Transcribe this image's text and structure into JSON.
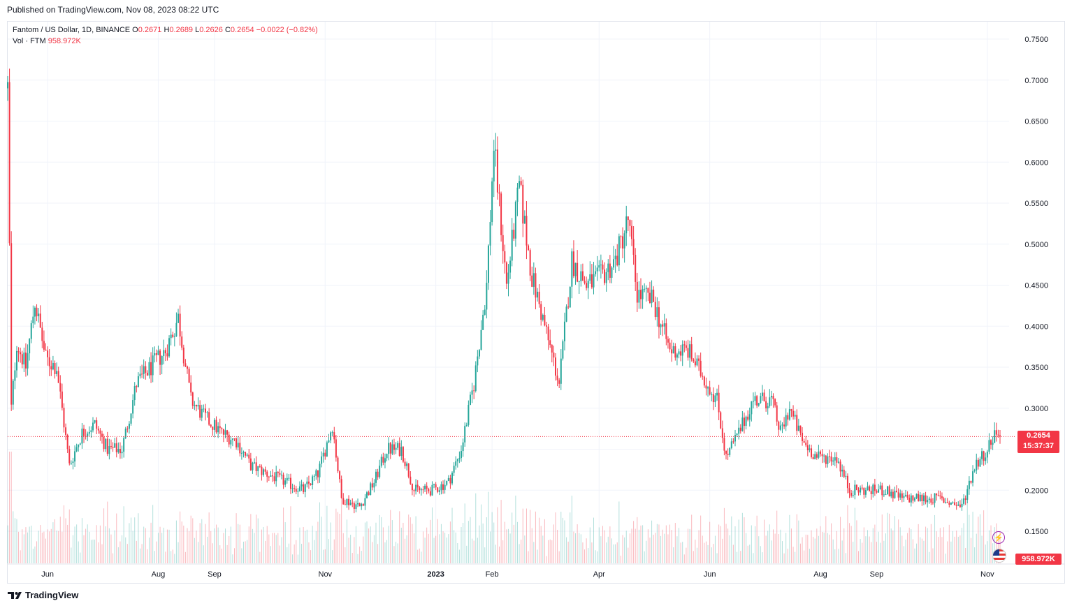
{
  "header": {
    "published": "Published on TradingView.com, Nov 08, 2023 08:22 UTC"
  },
  "legend": {
    "symbol": "Fantom / US Dollar, 1D, BINANCE",
    "o_label": "O",
    "o": "0.2671",
    "h_label": "H",
    "h": "0.2689",
    "l_label": "L",
    "l": "0.2626",
    "c_label": "C",
    "c": "0.2654",
    "change": "−0.0022 (−0.82%)",
    "vol_label": "Vol · FTM",
    "vol": "958.972K"
  },
  "price_tag": {
    "price": "0.2654",
    "countdown": "15:37:37"
  },
  "volume_tag": "958.972K",
  "footer": {
    "brand": "TradingView"
  },
  "colors": {
    "up": "#26a69a",
    "down": "#f23645",
    "grid": "#f0f3fa"
  },
  "chart_data": {
    "type": "candlestick",
    "y_axis_ticks": [
      "0.7500",
      "0.7000",
      "0.6500",
      "0.6000",
      "0.5500",
      "0.5000",
      "0.4500",
      "0.4000",
      "0.3500",
      "0.3000",
      "0.2500",
      "0.2000",
      "0.1500"
    ],
    "ylim": [
      0.135,
      0.76
    ],
    "x_axis_ticks": [
      "Jun",
      "Aug",
      "Sep",
      "Nov",
      "2023",
      "Feb",
      "Apr",
      "Jun",
      "Aug",
      "Sep",
      "Nov"
    ],
    "last_price": 0.2654,
    "series_close": [
      [
        "2022-05-10",
        0.69
      ],
      [
        "2022-05-12",
        0.3
      ],
      [
        "2022-05-15",
        0.38
      ],
      [
        "2022-05-20",
        0.35
      ],
      [
        "2022-05-25",
        0.43
      ],
      [
        "2022-05-31",
        0.36
      ],
      [
        "2022-06-06",
        0.35
      ],
      [
        "2022-06-13",
        0.23
      ],
      [
        "2022-06-20",
        0.27
      ],
      [
        "2022-06-27",
        0.28
      ],
      [
        "2022-07-04",
        0.25
      ],
      [
        "2022-07-12",
        0.25
      ],
      [
        "2022-07-20",
        0.33
      ],
      [
        "2022-07-28",
        0.35
      ],
      [
        "2022-08-05",
        0.37
      ],
      [
        "2022-08-12",
        0.41
      ],
      [
        "2022-08-19",
        0.31
      ],
      [
        "2022-08-26",
        0.29
      ],
      [
        "2022-09-05",
        0.27
      ],
      [
        "2022-09-13",
        0.26
      ],
      [
        "2022-09-21",
        0.23
      ],
      [
        "2022-09-30",
        0.22
      ],
      [
        "2022-10-10",
        0.21
      ],
      [
        "2022-10-20",
        0.2
      ],
      [
        "2022-10-28",
        0.22
      ],
      [
        "2022-11-05",
        0.28
      ],
      [
        "2022-11-10",
        0.19
      ],
      [
        "2022-11-20",
        0.18
      ],
      [
        "2022-11-28",
        0.21
      ],
      [
        "2022-12-05",
        0.25
      ],
      [
        "2022-12-13",
        0.25
      ],
      [
        "2022-12-20",
        0.2
      ],
      [
        "2022-12-30",
        0.2
      ],
      [
        "2023-01-08",
        0.21
      ],
      [
        "2023-01-15",
        0.25
      ],
      [
        "2023-01-22",
        0.33
      ],
      [
        "2023-01-29",
        0.45
      ],
      [
        "2023-02-02",
        0.62
      ],
      [
        "2023-02-09",
        0.45
      ],
      [
        "2023-02-16",
        0.57
      ],
      [
        "2023-02-23",
        0.46
      ],
      [
        "2023-03-02",
        0.4
      ],
      [
        "2023-03-10",
        0.33
      ],
      [
        "2023-03-17",
        0.48
      ],
      [
        "2023-03-25",
        0.45
      ],
      [
        "2023-04-02",
        0.46
      ],
      [
        "2023-04-10",
        0.48
      ],
      [
        "2023-04-17",
        0.53
      ],
      [
        "2023-04-22",
        0.44
      ],
      [
        "2023-05-01",
        0.43
      ],
      [
        "2023-05-10",
        0.37
      ],
      [
        "2023-05-20",
        0.37
      ],
      [
        "2023-05-28",
        0.34
      ],
      [
        "2023-06-05",
        0.31
      ],
      [
        "2023-06-10",
        0.24
      ],
      [
        "2023-06-17",
        0.27
      ],
      [
        "2023-06-25",
        0.31
      ],
      [
        "2023-07-05",
        0.31
      ],
      [
        "2023-07-10",
        0.27
      ],
      [
        "2023-07-15",
        0.3
      ],
      [
        "2023-07-22",
        0.26
      ],
      [
        "2023-07-30",
        0.24
      ],
      [
        "2023-08-10",
        0.24
      ],
      [
        "2023-08-17",
        0.2
      ],
      [
        "2023-08-25",
        0.2
      ],
      [
        "2023-09-05",
        0.2
      ],
      [
        "2023-09-15",
        0.19
      ],
      [
        "2023-09-25",
        0.19
      ],
      [
        "2023-10-05",
        0.19
      ],
      [
        "2023-10-18",
        0.18
      ],
      [
        "2023-10-25",
        0.23
      ],
      [
        "2023-11-01",
        0.25
      ],
      [
        "2023-11-05",
        0.27
      ],
      [
        "2023-11-08",
        0.2654
      ]
    ]
  }
}
